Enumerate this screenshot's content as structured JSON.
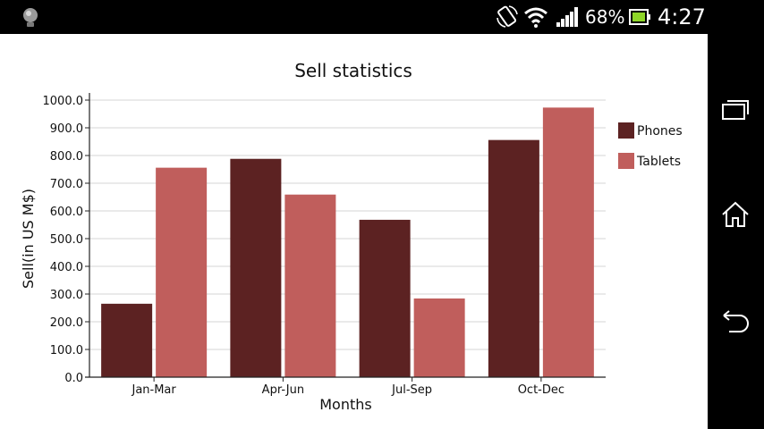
{
  "status_bar": {
    "battery_percent": "68%",
    "time": "4:27",
    "icons": [
      "notification-bulb-icon",
      "rotation-lock-icon",
      "wifi-icon",
      "cell-signal-icon",
      "battery-charging-icon"
    ]
  },
  "nav_bar": {
    "icons": [
      "recent-apps-icon",
      "home-icon",
      "back-icon"
    ]
  },
  "colors": {
    "phones": "#5c2222",
    "tablets": "#c05e5c"
  },
  "chart_data": {
    "type": "bar",
    "title": "Sell statistics",
    "xlabel": "Months",
    "ylabel": "Sell(in US M$)",
    "categories": [
      "Jan-Mar",
      "Apr-Jun",
      "Jul-Sep",
      "Oct-Dec"
    ],
    "series": [
      {
        "name": "Phones",
        "values": [
          265,
          788,
          568,
          856
        ]
      },
      {
        "name": "Tablets",
        "values": [
          756,
          659,
          284,
          973
        ]
      }
    ],
    "ylim": [
      0,
      1000
    ],
    "yticks": [
      "0.0",
      "100.0",
      "200.0",
      "300.0",
      "400.0",
      "500.0",
      "600.0",
      "700.0",
      "800.0",
      "900.0",
      "1000.0"
    ],
    "grid": true,
    "legend": "right"
  }
}
